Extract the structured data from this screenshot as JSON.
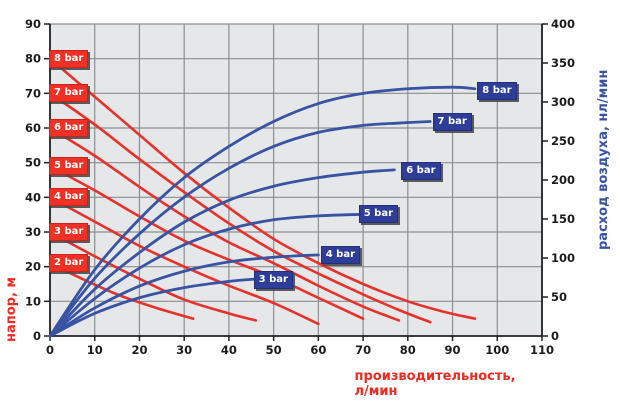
{
  "axis_titles": {
    "x": "производительность, л/мин",
    "y_left": "напор, м",
    "y_right": "расход воздуха, нл/мин"
  },
  "colors": {
    "head_curve": "#e8312b",
    "air_curve": "#3853a4",
    "head_label_bg": "#ee3124",
    "air_label_bg": "#2e3d98",
    "plot_bg": "#e6e7e8",
    "grid": "#8b8e91",
    "axis": "#231f20",
    "tick_text": "#1a1a1a"
  },
  "chart_data": {
    "type": "line",
    "xlabel": "производительность, л/мин",
    "ylabel_left": "напор, м",
    "ylabel_right": "расход воздуха, нл/мин",
    "xlim": [
      0,
      110
    ],
    "ylim_left": [
      0,
      90
    ],
    "ylim_right": [
      0,
      400
    ],
    "grid": true,
    "x_ticks": [
      0,
      10,
      20,
      30,
      40,
      50,
      60,
      70,
      80,
      90,
      100,
      110
    ],
    "y_left_ticks": [
      0,
      10,
      20,
      30,
      40,
      50,
      60,
      70,
      80,
      90
    ],
    "y_right_ticks": [
      0,
      50,
      100,
      150,
      200,
      250,
      300,
      350,
      400
    ],
    "series": [
      {
        "name": "8 bar",
        "group": "head",
        "axis": "left",
        "label_pos": {
          "x": 4.3,
          "y": 80
        },
        "points": [
          [
            0,
            80
          ],
          [
            10,
            69
          ],
          [
            20,
            58
          ],
          [
            30,
            47
          ],
          [
            40,
            37
          ],
          [
            50,
            28
          ],
          [
            60,
            21
          ],
          [
            70,
            15
          ],
          [
            80,
            10
          ],
          [
            88,
            7
          ],
          [
            95,
            5
          ]
        ]
      },
      {
        "name": "7 bar",
        "group": "head",
        "axis": "left",
        "label_pos": {
          "x": 4.3,
          "y": 70
        },
        "points": [
          [
            0,
            70
          ],
          [
            10,
            61
          ],
          [
            20,
            51
          ],
          [
            30,
            41.5
          ],
          [
            40,
            32.5
          ],
          [
            50,
            24.5
          ],
          [
            60,
            18
          ],
          [
            70,
            12
          ],
          [
            78,
            7.5
          ],
          [
            85,
            4
          ]
        ]
      },
      {
        "name": "6 bar",
        "group": "head",
        "axis": "left",
        "label_pos": {
          "x": 4.3,
          "y": 60
        },
        "points": [
          [
            0,
            60
          ],
          [
            10,
            52
          ],
          [
            20,
            43
          ],
          [
            30,
            34.5
          ],
          [
            40,
            27
          ],
          [
            50,
            21
          ],
          [
            60,
            14.5
          ],
          [
            70,
            8.5
          ],
          [
            78,
            4.5
          ]
        ]
      },
      {
        "name": "5 bar",
        "group": "head",
        "axis": "left",
        "label_pos": {
          "x": 4.3,
          "y": 49
        },
        "points": [
          [
            0,
            49
          ],
          [
            10,
            42
          ],
          [
            20,
            34.5
          ],
          [
            30,
            27.5
          ],
          [
            40,
            22
          ],
          [
            50,
            17
          ],
          [
            60,
            11
          ],
          [
            70,
            5
          ]
        ]
      },
      {
        "name": "4 bar",
        "group": "head",
        "axis": "left",
        "label_pos": {
          "x": 4.3,
          "y": 40
        },
        "points": [
          [
            0,
            40
          ],
          [
            10,
            33
          ],
          [
            20,
            26
          ],
          [
            30,
            20
          ],
          [
            40,
            14.5
          ],
          [
            50,
            9.5
          ],
          [
            60,
            3.5
          ]
        ]
      },
      {
        "name": "3 bar",
        "group": "head",
        "axis": "left",
        "label_pos": {
          "x": 4.3,
          "y": 30
        },
        "points": [
          [
            0,
            30
          ],
          [
            10,
            23
          ],
          [
            20,
            16.5
          ],
          [
            30,
            10.5
          ],
          [
            40,
            6.5
          ],
          [
            46,
            4.5
          ]
        ]
      },
      {
        "name": "2 bar",
        "group": "head",
        "axis": "left",
        "label_pos": {
          "x": 4.3,
          "y": 21
        },
        "points": [
          [
            0,
            21
          ],
          [
            8,
            16
          ],
          [
            16,
            11.5
          ],
          [
            24,
            8
          ],
          [
            32,
            5
          ]
        ]
      },
      {
        "name": "8 bar",
        "group": "air",
        "axis": "right",
        "label_pos": {
          "x": 100,
          "y": 314
        },
        "points": [
          [
            0,
            0
          ],
          [
            10,
            85
          ],
          [
            20,
            150
          ],
          [
            30,
            203
          ],
          [
            40,
            243
          ],
          [
            50,
            275
          ],
          [
            60,
            298
          ],
          [
            70,
            311
          ],
          [
            80,
            317
          ],
          [
            90,
            319
          ],
          [
            95,
            317
          ]
        ]
      },
      {
        "name": "7 bar",
        "group": "air",
        "axis": "right",
        "label_pos": {
          "x": 90,
          "y": 274
        },
        "points": [
          [
            0,
            0
          ],
          [
            10,
            74
          ],
          [
            20,
            131
          ],
          [
            30,
            178
          ],
          [
            40,
            215
          ],
          [
            50,
            243
          ],
          [
            60,
            261
          ],
          [
            70,
            270
          ],
          [
            78,
            273
          ],
          [
            85,
            275
          ]
        ]
      },
      {
        "name": "6 bar",
        "group": "air",
        "axis": "right",
        "label_pos": {
          "x": 83,
          "y": 212
        },
        "points": [
          [
            0,
            0
          ],
          [
            10,
            60
          ],
          [
            20,
            107
          ],
          [
            30,
            146
          ],
          [
            40,
            174
          ],
          [
            50,
            192
          ],
          [
            60,
            203
          ],
          [
            70,
            210
          ],
          [
            77,
            213
          ]
        ]
      },
      {
        "name": "5 bar",
        "group": "air",
        "axis": "right",
        "label_pos": {
          "x": 73.5,
          "y": 156
        },
        "points": [
          [
            0,
            0
          ],
          [
            10,
            48
          ],
          [
            20,
            87
          ],
          [
            30,
            117
          ],
          [
            40,
            137
          ],
          [
            50,
            149
          ],
          [
            60,
            154
          ],
          [
            70,
            156
          ]
        ]
      },
      {
        "name": "4 bar",
        "group": "air",
        "axis": "right",
        "label_pos": {
          "x": 65,
          "y": 104
        },
        "points": [
          [
            0,
            0
          ],
          [
            10,
            36
          ],
          [
            20,
            64
          ],
          [
            30,
            83
          ],
          [
            40,
            95
          ],
          [
            50,
            101
          ],
          [
            60,
            104
          ]
        ]
      },
      {
        "name": "3 bar",
        "group": "air",
        "axis": "right",
        "label_pos": {
          "x": 50,
          "y": 72
        },
        "points": [
          [
            0,
            0
          ],
          [
            10,
            29
          ],
          [
            20,
            49
          ],
          [
            30,
            62
          ],
          [
            40,
            70
          ],
          [
            46,
            73
          ]
        ]
      }
    ]
  }
}
